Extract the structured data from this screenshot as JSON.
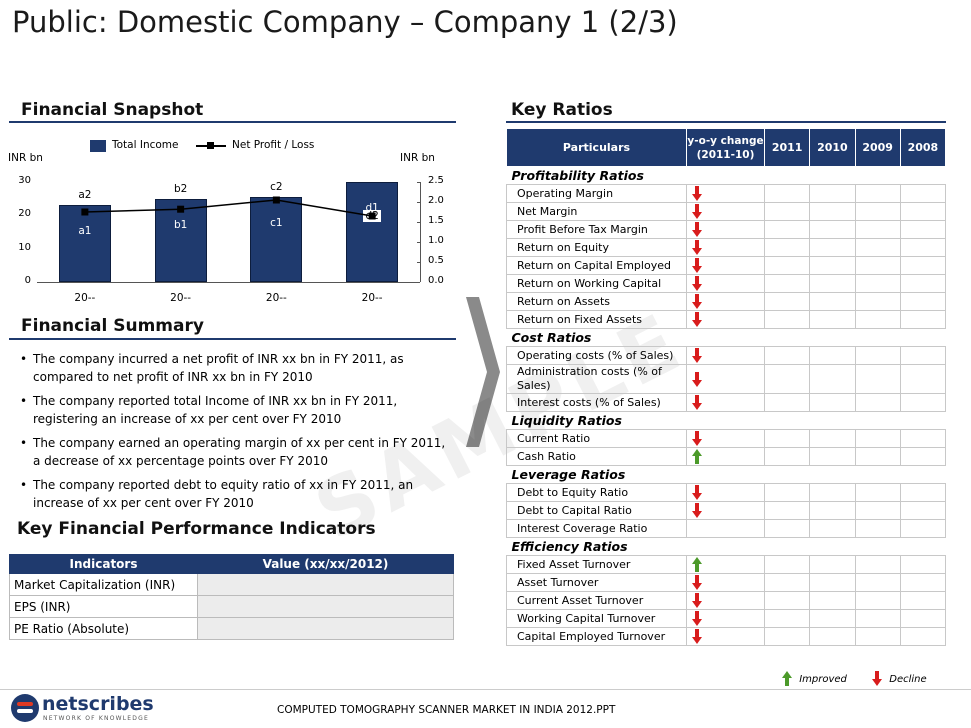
{
  "title": "Public: Domestic Company – Company 1 (2/3)",
  "sections": {
    "snapshot": "Financial Snapshot",
    "summary": "Financial Summary",
    "kpi": "Key Financial Performance Indicators",
    "ratios": "Key Ratios"
  },
  "watermark": "SAMPLE",
  "chart_data": {
    "type": "bar",
    "categories": [
      "20--",
      "20--",
      "20--",
      "20--"
    ],
    "series": [
      {
        "name": "Total Income",
        "kind": "bar",
        "axis": "left",
        "values": [
          23,
          25,
          25.5,
          30
        ],
        "labels": [
          "a1",
          "b1",
          "c1",
          "d1"
        ],
        "top_labels": [
          "a2",
          "b2",
          "c2",
          "d2"
        ]
      },
      {
        "name": "Net Profit / Loss",
        "kind": "line",
        "axis": "right",
        "values": [
          1.75,
          1.82,
          2.05,
          1.65
        ]
      }
    ],
    "ylabel_left": "INR bn",
    "ylabel_right": "INR bn",
    "ylim_left": [
      0,
      30
    ],
    "yticks_left": [
      "0",
      "10",
      "20",
      "30"
    ],
    "ylim_right": [
      0,
      2.5
    ],
    "yticks_right": [
      "0.0",
      "0.5",
      "1.0",
      "1.5",
      "2.0",
      "2.5"
    ],
    "legend": "top-left",
    "grid": false
  },
  "summary_bullets": [
    {
      "l1": "The company incurred a net profit of INR xx bn in FY 2011, as",
      "l2": "compared to net profit of INR xx bn in FY 2010"
    },
    {
      "l1": "The company reported total Income of  INR xx bn in FY 2011,",
      "l2": "registering an increase of xx per cent over FY 2010"
    },
    {
      "l1": "The company earned an operating margin of xx per cent in FY 2011,",
      "l2": "a decrease of xx percentage points over FY 2010"
    },
    {
      "l1": "The company reported debt to equity ratio of xx in FY 2011, an",
      "l2": "increase of xx per cent over FY 2010"
    }
  ],
  "kpi_table": {
    "headers": [
      "Indicators",
      "Value (xx/xx/2012)"
    ],
    "rows": [
      "Market Capitalization (INR)",
      "EPS (INR)",
      "PE Ratio (Absolute)"
    ]
  },
  "ratios_table": {
    "headers": {
      "particulars": "Particulars",
      "yoy_l1": "y-o-y change",
      "yoy_l2": "(2011-10)",
      "y1": "2011",
      "y2": "2010",
      "y3": "2009",
      "y4": "2008"
    },
    "groups": [
      {
        "name": "Profitability Ratios",
        "items": [
          {
            "label": "Operating Margin",
            "trend": "decline"
          },
          {
            "label": "Net Margin",
            "trend": "decline"
          },
          {
            "label": "Profit Before Tax Margin",
            "trend": "decline"
          },
          {
            "label": "Return on Equity",
            "trend": "decline"
          },
          {
            "label": "Return on Capital Employed",
            "trend": "decline"
          },
          {
            "label": "Return on Working Capital",
            "trend": "decline"
          },
          {
            "label": "Return on Assets",
            "trend": "decline"
          },
          {
            "label": "Return on Fixed Assets",
            "trend": "decline"
          }
        ]
      },
      {
        "name": "Cost Ratios",
        "items": [
          {
            "label": "Operating costs (% of Sales)",
            "trend": "decline"
          },
          {
            "label": "Administration costs (% of Sales)",
            "trend": "decline"
          },
          {
            "label": "Interest costs (% of Sales)",
            "trend": "decline"
          }
        ]
      },
      {
        "name": "Liquidity Ratios",
        "items": [
          {
            "label": "Current Ratio",
            "trend": "decline"
          },
          {
            "label": "Cash Ratio",
            "trend": "improved"
          }
        ]
      },
      {
        "name": "Leverage Ratios",
        "items": [
          {
            "label": "Debt to Equity Ratio",
            "trend": "decline"
          },
          {
            "label": "Debt to Capital Ratio",
            "trend": "decline"
          },
          {
            "label": "Interest Coverage Ratio",
            "trend": "none"
          }
        ]
      },
      {
        "name": "Efficiency Ratios",
        "items": [
          {
            "label": "Fixed Asset Turnover",
            "trend": "improved"
          },
          {
            "label": "Asset Turnover",
            "trend": "decline"
          },
          {
            "label": "Current Asset Turnover",
            "trend": "decline"
          },
          {
            "label": "Working Capital Turnover",
            "trend": "decline"
          },
          {
            "label": "Capital Employed Turnover",
            "trend": "decline"
          }
        ]
      }
    ],
    "legend": {
      "improved": "Improved",
      "decline": "Decline"
    }
  },
  "footer": {
    "brand": "netscribes",
    "tagline": "NETWORK OF KNOWLEDGE",
    "doc": "COMPUTED TOMOGRAPHY SCANNER  MARKET IN INDIA 2012.PPT"
  },
  "colors": {
    "navy": "#1f3a6e",
    "decline": "#d81c1c",
    "improved": "#4c9a2a"
  }
}
